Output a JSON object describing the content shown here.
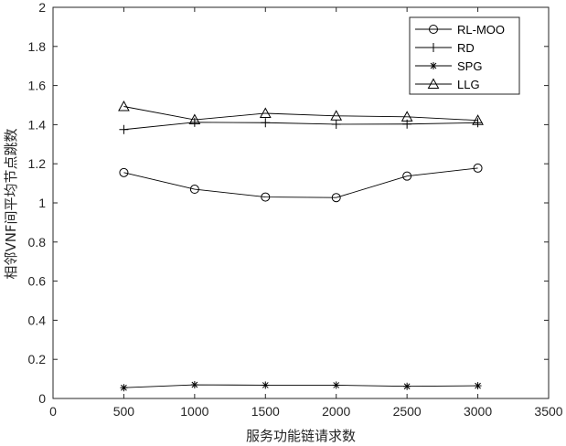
{
  "chart_data": {
    "type": "line",
    "title": "",
    "xlabel": "服务功能链请求数",
    "ylabel": "相邻VNF间平均节点跳数",
    "xlim": [
      0,
      3500
    ],
    "ylim": [
      0,
      2
    ],
    "xticks": [
      0,
      500,
      1000,
      1500,
      2000,
      2500,
      3000,
      3500
    ],
    "xtick_labels": [
      "0",
      "500",
      "1000",
      "1500",
      "2000",
      "2500",
      "3000",
      "3500"
    ],
    "yticks": [
      0,
      0.2,
      0.4,
      0.6,
      0.8,
      1,
      1.2,
      1.4,
      1.6,
      1.8,
      2
    ],
    "ytick_labels": [
      "0",
      "0.2",
      "0.4",
      "0.6",
      "0.8",
      "1",
      "1.2",
      "1.4",
      "1.6",
      "1.8",
      "2"
    ],
    "grid": false,
    "legend_position": "top-right",
    "x": [
      500,
      1000,
      1500,
      2000,
      2500,
      3000
    ],
    "series": [
      {
        "name": "RL-MOO",
        "marker": "circle",
        "values": [
          1.155,
          1.07,
          1.03,
          1.027,
          1.137,
          1.178
        ]
      },
      {
        "name": "RD",
        "marker": "plus",
        "values": [
          1.375,
          1.412,
          1.41,
          1.402,
          1.403,
          1.41
        ]
      },
      {
        "name": "SPG",
        "marker": "asterisk",
        "values": [
          0.055,
          0.07,
          0.068,
          0.068,
          0.062,
          0.065
        ]
      },
      {
        "name": "LLG",
        "marker": "triangle",
        "values": [
          1.493,
          1.425,
          1.458,
          1.445,
          1.44,
          1.422
        ]
      }
    ],
    "line_color": "#000000"
  }
}
